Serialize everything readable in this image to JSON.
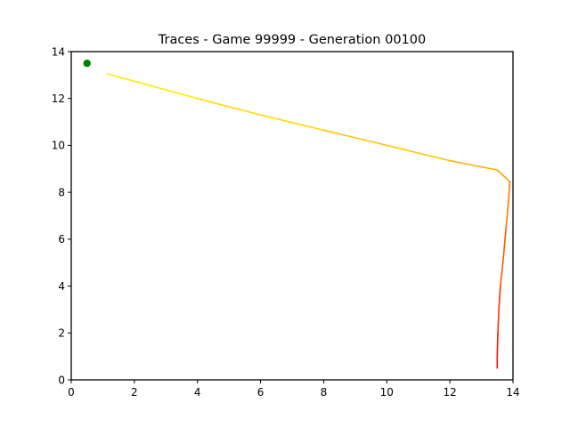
{
  "chart_data": {
    "type": "line",
    "title": "Traces - Game 99999 - Generation 00100",
    "xlabel": "",
    "ylabel": "",
    "xlim": [
      0,
      14
    ],
    "ylim": [
      0,
      14
    ],
    "grid": false,
    "x_ticks": [
      0,
      2,
      4,
      6,
      8,
      10,
      12,
      14
    ],
    "y_ticks": [
      0,
      2,
      4,
      6,
      8,
      10,
      12,
      14
    ],
    "x_tick_labels": [
      "0",
      "2",
      "4",
      "6",
      "8",
      "10",
      "12",
      "14"
    ],
    "y_tick_labels": [
      "0",
      "2",
      "4",
      "6",
      "8",
      "10",
      "12",
      "14"
    ],
    "marker": {
      "x": 0.5,
      "y": 13.5,
      "color": "#008000"
    },
    "trace_segments": [
      {
        "color": "#ffee00",
        "points": [
          [
            1.15,
            13.05
          ],
          [
            2.5,
            12.55
          ],
          [
            4.0,
            12.0
          ]
        ]
      },
      {
        "color": "#ffdd00",
        "points": [
          [
            4.0,
            12.0
          ],
          [
            6.0,
            11.3
          ],
          [
            8.0,
            10.65
          ]
        ]
      },
      {
        "color": "#ffc400",
        "points": [
          [
            8.0,
            10.65
          ],
          [
            10.0,
            10.0
          ],
          [
            12.0,
            9.35
          ]
        ]
      },
      {
        "color": "#ffae00",
        "points": [
          [
            12.0,
            9.35
          ],
          [
            13.5,
            8.95
          ]
        ]
      },
      {
        "color": "#ff9800",
        "points": [
          [
            13.5,
            8.95
          ],
          [
            13.9,
            8.45
          ]
        ]
      },
      {
        "color": "#ff7a00",
        "points": [
          [
            13.9,
            8.45
          ],
          [
            13.85,
            7.5
          ],
          [
            13.78,
            6.5
          ]
        ]
      },
      {
        "color": "#ff5500",
        "points": [
          [
            13.78,
            6.5
          ],
          [
            13.68,
            5.0
          ],
          [
            13.6,
            4.0
          ]
        ]
      },
      {
        "color": "#ff3000",
        "points": [
          [
            13.6,
            4.0
          ],
          [
            13.55,
            3.0
          ],
          [
            13.52,
            2.0
          ]
        ]
      },
      {
        "color": "#ff1000",
        "points": [
          [
            13.52,
            2.0
          ],
          [
            13.5,
            1.0
          ],
          [
            13.5,
            0.5
          ]
        ]
      }
    ]
  }
}
